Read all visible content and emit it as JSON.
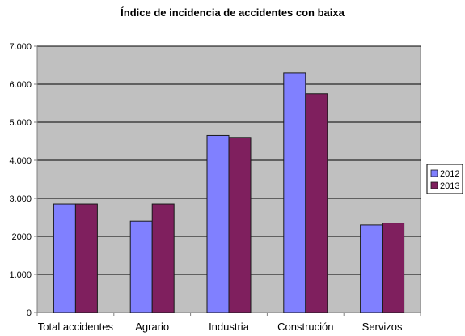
{
  "chart_data": {
    "type": "bar",
    "title": "Índice de incidencia de accidentes con baixa",
    "xlabel": "",
    "ylabel": "",
    "categories": [
      "Total accidentes",
      "Agrario",
      "Industria",
      "Construción",
      "Servizos"
    ],
    "series": [
      {
        "name": "2012",
        "color": "#8080ff",
        "values": [
          2850,
          2400,
          4650,
          6300,
          2300
        ]
      },
      {
        "name": "2013",
        "color": "#7f1f5e",
        "values": [
          2850,
          2850,
          4600,
          5750,
          2350
        ]
      }
    ],
    "ylim": [
      0,
      7000
    ],
    "yticks": [
      0,
      1000,
      2000,
      3000,
      4000,
      5000,
      6000,
      7000
    ],
    "ytick_labels": [
      "0",
      "1.000",
      "2000",
      "3.000",
      "4.000",
      "5.000",
      "6.000",
      "7.000"
    ],
    "grid": true,
    "legend_position": "right",
    "plot_background": "#c0c0c0"
  }
}
